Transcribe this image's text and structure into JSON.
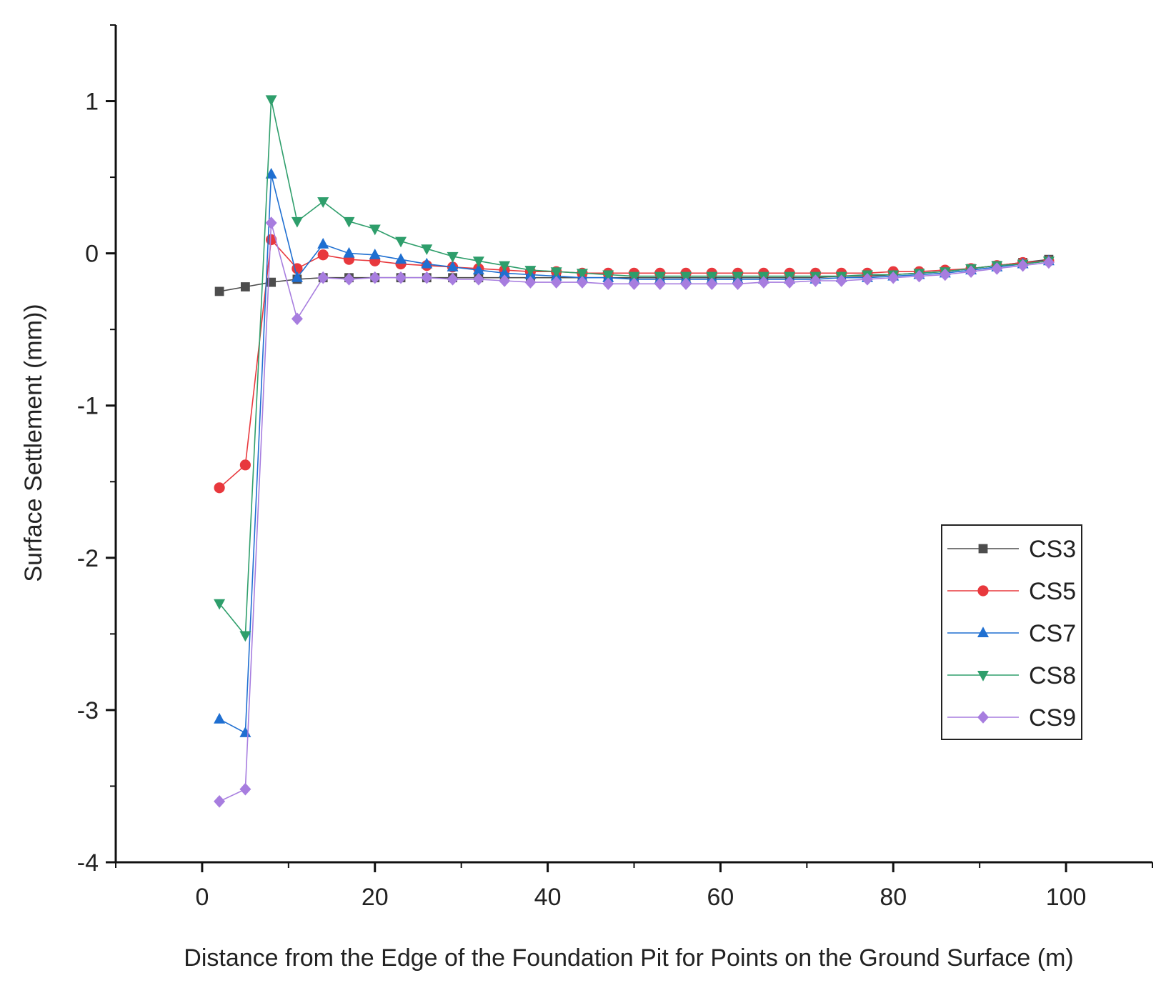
{
  "chart_data": {
    "type": "line",
    "xlabel": "Distance from the Edge of the Foundation Pit for Points on the Ground Surface (m)",
    "ylabel": "Surface Settlement (mm))",
    "xlim": [
      -10,
      110
    ],
    "ylim": [
      -4,
      1.5
    ],
    "xticks": [
      0,
      20,
      40,
      60,
      80,
      100
    ],
    "yticks": [
      1,
      0,
      -1,
      -2,
      -3,
      -4
    ],
    "x_tick_labels": [
      "0",
      "20",
      "40",
      "60",
      "80",
      "100"
    ],
    "y_tick_labels": [
      "1",
      "0",
      "-1",
      "-2",
      "-3",
      "-4"
    ],
    "grid": false,
    "legend_position": "right",
    "x": [
      2,
      5,
      8,
      11,
      14,
      17,
      20,
      23,
      26,
      29,
      32,
      35,
      38,
      41,
      44,
      47,
      50,
      53,
      56,
      59,
      62,
      65,
      68,
      71,
      74,
      77,
      80,
      83,
      86,
      89,
      92,
      95,
      98
    ],
    "series": [
      {
        "name": "CS3",
        "color": "#4d4d4d",
        "marker": "square",
        "values": [
          -0.25,
          -0.22,
          -0.19,
          -0.17,
          -0.16,
          -0.16,
          -0.16,
          -0.16,
          -0.16,
          -0.16,
          -0.16,
          -0.16,
          -0.16,
          -0.16,
          -0.16,
          -0.16,
          -0.16,
          -0.16,
          -0.16,
          -0.16,
          -0.16,
          -0.16,
          -0.16,
          -0.16,
          -0.15,
          -0.15,
          -0.14,
          -0.13,
          -0.12,
          -0.1,
          -0.08,
          -0.06,
          -0.04
        ]
      },
      {
        "name": "CS5",
        "color": "#e8383d",
        "marker": "circle",
        "values": [
          -1.54,
          -1.39,
          0.09,
          -0.1,
          -0.01,
          -0.04,
          -0.05,
          -0.07,
          -0.08,
          -0.09,
          -0.1,
          -0.11,
          -0.12,
          -0.12,
          -0.13,
          -0.13,
          -0.13,
          -0.13,
          -0.13,
          -0.13,
          -0.13,
          -0.13,
          -0.13,
          -0.13,
          -0.13,
          -0.13,
          -0.12,
          -0.12,
          -0.11,
          -0.1,
          -0.08,
          -0.06,
          -0.05
        ]
      },
      {
        "name": "CS7",
        "color": "#1f6fd1",
        "marker": "triangle-up",
        "values": [
          -3.06,
          -3.15,
          0.52,
          -0.16,
          0.06,
          -0.0,
          -0.01,
          -0.04,
          -0.07,
          -0.09,
          -0.11,
          -0.13,
          -0.14,
          -0.15,
          -0.16,
          -0.16,
          -0.17,
          -0.17,
          -0.17,
          -0.17,
          -0.17,
          -0.17,
          -0.17,
          -0.17,
          -0.16,
          -0.16,
          -0.15,
          -0.14,
          -0.13,
          -0.11,
          -0.09,
          -0.07,
          -0.05
        ]
      },
      {
        "name": "CS8",
        "color": "#2e9e6b",
        "marker": "triangle-down",
        "values": [
          -2.3,
          -2.51,
          1.01,
          0.21,
          0.34,
          0.21,
          0.16,
          0.08,
          0.03,
          -0.02,
          -0.05,
          -0.08,
          -0.11,
          -0.12,
          -0.13,
          -0.14,
          -0.15,
          -0.15,
          -0.15,
          -0.15,
          -0.15,
          -0.15,
          -0.15,
          -0.15,
          -0.15,
          -0.14,
          -0.14,
          -0.13,
          -0.12,
          -0.1,
          -0.08,
          -0.07,
          -0.05
        ]
      },
      {
        "name": "CS9",
        "color": "#a77ddf",
        "marker": "diamond",
        "values": [
          -3.6,
          -3.52,
          0.2,
          -0.43,
          -0.16,
          -0.17,
          -0.16,
          -0.16,
          -0.16,
          -0.17,
          -0.17,
          -0.18,
          -0.19,
          -0.19,
          -0.19,
          -0.2,
          -0.2,
          -0.2,
          -0.2,
          -0.2,
          -0.2,
          -0.19,
          -0.19,
          -0.18,
          -0.18,
          -0.17,
          -0.16,
          -0.15,
          -0.14,
          -0.12,
          -0.1,
          -0.08,
          -0.06
        ]
      }
    ]
  }
}
